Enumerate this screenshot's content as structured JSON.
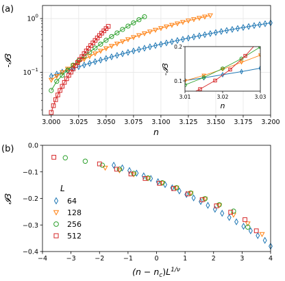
{
  "panel_a_label": "(a)",
  "panel_b_label": "(b)",
  "inset_xlabel": "n",
  "inset_ylabel": "-𝓘3",
  "chart_data": [
    {
      "id": "a",
      "type": "line",
      "xlabel": "n",
      "ylabel": "-𝓘3",
      "yscale": "log",
      "xlim": [
        2.992,
        3.2
      ],
      "ylim": [
        0.016,
        1.75
      ],
      "xticks": [
        "3.000",
        "3.025",
        "3.050",
        "3.075",
        "3.100",
        "3.125",
        "3.150",
        "3.175",
        "3.200"
      ],
      "yticks": [
        "10^-1",
        "10^0"
      ],
      "series": [
        {
          "name": "64",
          "color": "#1f77b4",
          "marker": "diamond",
          "x": [
            3.0,
            3.005,
            3.01,
            3.015,
            3.02,
            3.025,
            3.03,
            3.035,
            3.04,
            3.045,
            3.05,
            3.055,
            3.06,
            3.065,
            3.07,
            3.075,
            3.08,
            3.085,
            3.09,
            3.095,
            3.1,
            3.105,
            3.11,
            3.115,
            3.12,
            3.125,
            3.13,
            3.135,
            3.14,
            3.145,
            3.15,
            3.155,
            3.16,
            3.165,
            3.17,
            3.175,
            3.18,
            3.185,
            3.19,
            3.195,
            3.2
          ],
          "y": [
            0.085,
            0.093,
            0.101,
            0.109,
            0.118,
            0.127,
            0.137,
            0.147,
            0.158,
            0.169,
            0.181,
            0.194,
            0.207,
            0.221,
            0.235,
            0.25,
            0.265,
            0.281,
            0.298,
            0.315,
            0.333,
            0.352,
            0.371,
            0.391,
            0.412,
            0.433,
            0.455,
            0.478,
            0.501,
            0.525,
            0.55,
            0.575,
            0.601,
            0.628,
            0.655,
            0.683,
            0.711,
            0.74,
            0.77,
            0.8,
            0.83
          ]
        },
        {
          "name": "128",
          "color": "#ff7f0e",
          "marker": "triangle-down",
          "x": [
            3.0,
            3.005,
            3.01,
            3.015,
            3.02,
            3.025,
            3.03,
            3.035,
            3.04,
            3.045,
            3.05,
            3.055,
            3.06,
            3.065,
            3.07,
            3.075,
            3.08,
            3.085,
            3.09,
            3.095,
            3.1,
            3.105,
            3.11,
            3.115,
            3.12,
            3.125,
            3.13,
            3.135,
            3.14,
            3.145
          ],
          "y": [
            0.072,
            0.085,
            0.1,
            0.116,
            0.134,
            0.154,
            0.175,
            0.198,
            0.223,
            0.25,
            0.278,
            0.308,
            0.34,
            0.374,
            0.41,
            0.447,
            0.486,
            0.527,
            0.569,
            0.613,
            0.659,
            0.707,
            0.756,
            0.806,
            0.857,
            0.91,
            0.965,
            1.02,
            1.08,
            1.14
          ]
        },
        {
          "name": "256",
          "color": "#2ca02c",
          "marker": "circle",
          "x": [
            3.0,
            3.005,
            3.01,
            3.015,
            3.02,
            3.025,
            3.03,
            3.035,
            3.04,
            3.045,
            3.05,
            3.055,
            3.06,
            3.065,
            3.07,
            3.075,
            3.08,
            3.085
          ],
          "y": [
            0.046,
            0.068,
            0.088,
            0.11,
            0.136,
            0.165,
            0.199,
            0.238,
            0.283,
            0.335,
            0.395,
            0.463,
            0.54,
            0.627,
            0.724,
            0.832,
            0.951,
            1.08
          ]
        },
        {
          "name": "512",
          "color": "#d62728",
          "marker": "square",
          "x": [
            3.0,
            3.002,
            3.004,
            3.006,
            3.008,
            3.01,
            3.012,
            3.014,
            3.016,
            3.018,
            3.02,
            3.022,
            3.024,
            3.026,
            3.028,
            3.03,
            3.032,
            3.034,
            3.036,
            3.038,
            3.04,
            3.042,
            3.044,
            3.046,
            3.048,
            3.05,
            3.052
          ],
          "y": [
            0.018,
            0.024,
            0.031,
            0.038,
            0.046,
            0.055,
            0.065,
            0.076,
            0.088,
            0.101,
            0.116,
            0.133,
            0.152,
            0.173,
            0.196,
            0.222,
            0.25,
            0.281,
            0.315,
            0.352,
            0.392,
            0.436,
            0.484,
            0.536,
            0.592,
            0.652,
            0.716
          ]
        }
      ]
    },
    {
      "id": "a-inset",
      "type": "line",
      "xlabel": "n",
      "ylabel": "-𝓘3",
      "xlim": [
        3.01,
        3.03
      ],
      "ylim": [
        0.07,
        0.2
      ],
      "xticks": [
        "3.01",
        "3.02",
        "3.03"
      ],
      "yticks": [
        "0.1",
        "0.2"
      ],
      "series": [
        {
          "name": "64",
          "color": "#1f77b4",
          "marker": "diamond",
          "x": [
            3.01,
            3.015,
            3.02,
            3.025,
            3.03
          ],
          "y": [
            0.101,
            0.109,
            0.118,
            0.127,
            0.137
          ]
        },
        {
          "name": "128",
          "color": "#ff7f0e",
          "marker": "triangle-down",
          "x": [
            3.01,
            3.015,
            3.02,
            3.025,
            3.03
          ],
          "y": [
            0.1,
            0.116,
            0.134,
            0.154,
            0.175
          ]
        },
        {
          "name": "256",
          "color": "#2ca02c",
          "marker": "circle",
          "x": [
            3.01,
            3.015,
            3.02,
            3.025,
            3.03
          ],
          "y": [
            0.088,
            0.11,
            0.136,
            0.165,
            0.199
          ]
        },
        {
          "name": "512",
          "color": "#d62728",
          "marker": "square",
          "x": [
            3.01,
            3.014,
            3.018,
            3.022,
            3.026,
            3.03
          ],
          "y": [
            0.055,
            0.076,
            0.101,
            0.133,
            0.173,
            0.222
          ]
        }
      ]
    },
    {
      "id": "b",
      "type": "scatter",
      "xlabel": "(n − n_c) L^(1/ν)",
      "ylabel": "𝓘3",
      "xlim": [
        -4,
        4
      ],
      "ylim": [
        -0.4,
        0.0
      ],
      "xticks": [
        "−4",
        "−3",
        "−2",
        "−1",
        "0",
        "1",
        "2",
        "3",
        "4"
      ],
      "yticks": [
        "−0.4",
        "−0.3",
        "−0.2",
        "−0.1",
        "0.0"
      ],
      "legend_title": "L",
      "legend_position": "lower-left",
      "series": [
        {
          "name": "64",
          "color": "#1f77b4",
          "marker": "diamond",
          "x": [
            -1.5,
            -1.2,
            -0.95,
            -0.7,
            -0.45,
            -0.2,
            0.05,
            0.3,
            0.55,
            0.8,
            1.05,
            1.3,
            1.55,
            1.8,
            2.05,
            2.3,
            2.55,
            2.8,
            3.05,
            3.3,
            3.55,
            3.8,
            4.0
          ],
          "y": [
            -0.075,
            -0.085,
            -0.095,
            -0.105,
            -0.115,
            -0.125,
            -0.137,
            -0.148,
            -0.16,
            -0.172,
            -0.185,
            -0.198,
            -0.212,
            -0.226,
            -0.241,
            -0.256,
            -0.272,
            -0.288,
            -0.305,
            -0.322,
            -0.34,
            -0.358,
            -0.38
          ]
        },
        {
          "name": "128",
          "color": "#ff7f0e",
          "marker": "triangle-down",
          "x": [
            -1.8,
            -1.3,
            -0.8,
            -0.3,
            0.2,
            0.7,
            1.2,
            1.7,
            2.2,
            2.7,
            3.2,
            3.7
          ],
          "y": [
            -0.085,
            -0.095,
            -0.11,
            -0.125,
            -0.142,
            -0.16,
            -0.18,
            -0.202,
            -0.226,
            -0.262,
            -0.295,
            -0.335
          ]
        },
        {
          "name": "256",
          "color": "#2ca02c",
          "marker": "circle",
          "x": [
            -3.2,
            -2.5,
            -1.9,
            -1.3,
            -0.8,
            -0.3,
            0.2,
            0.7,
            1.2,
            1.7,
            2.2,
            2.7,
            3.2
          ],
          "y": [
            -0.047,
            -0.06,
            -0.075,
            -0.09,
            -0.106,
            -0.123,
            -0.141,
            -0.16,
            -0.18,
            -0.201,
            -0.224,
            -0.248,
            -0.308
          ]
        },
        {
          "name": "512",
          "color": "#d62728",
          "marker": "square",
          "x": [
            -3.6,
            -2.0,
            -1.4,
            -0.9,
            -0.4,
            0.1,
            0.6,
            1.1,
            1.6,
            2.1,
            2.6,
            3.1,
            3.5
          ],
          "y": [
            -0.045,
            -0.07,
            -0.09,
            -0.108,
            -0.125,
            -0.143,
            -0.163,
            -0.183,
            -0.205,
            -0.228,
            -0.252,
            -0.28,
            -0.322
          ]
        }
      ]
    }
  ]
}
